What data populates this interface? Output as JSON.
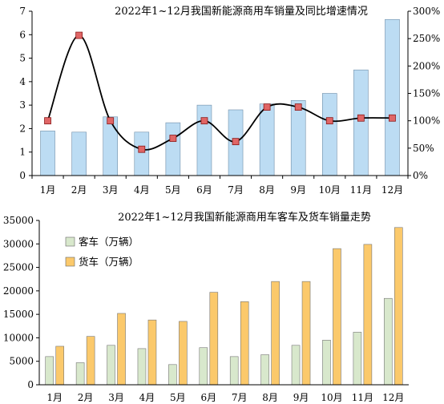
{
  "chart_data": [
    {
      "type": "bar",
      "title": "2022年1~12月我国新能源商用车销量及同比增速情况",
      "categories": [
        "1月",
        "2月",
        "3月",
        "4月",
        "5月",
        "6月",
        "7月",
        "8月",
        "9月",
        "10月",
        "11月",
        "12月"
      ],
      "series": [
        {
          "axis": "left",
          "type": "bar",
          "values": [
            1.9,
            1.85,
            2.5,
            1.85,
            2.25,
            3.0,
            2.8,
            3.05,
            3.2,
            3.5,
            4.5,
            6.65
          ],
          "color": "#bcdcf3"
        },
        {
          "axis": "right",
          "type": "line",
          "smooth": true,
          "values": [
            100,
            256,
            100,
            48,
            68,
            100,
            62,
            125,
            125,
            100,
            105,
            105
          ],
          "color": "#000000",
          "marker_color": "#e06666"
        }
      ],
      "ylim_left": [
        0,
        7
      ],
      "yticks_left": [
        "0",
        "1",
        "2",
        "3",
        "4",
        "5",
        "6",
        "7"
      ],
      "ylim_right": [
        0,
        300
      ],
      "yticks_right": [
        "0%",
        "50%",
        "100%",
        "150%",
        "200%",
        "250%",
        "300%"
      ]
    },
    {
      "type": "bar",
      "title": "2022年1~12月我国新能源商用车客车及货车销量走势",
      "categories": [
        "1月",
        "2月",
        "3月",
        "4月",
        "5月",
        "6月",
        "7月",
        "8月",
        "9月",
        "10月",
        "11月",
        "12月"
      ],
      "series": [
        {
          "name": "客车（万辆）",
          "values": [
            6000,
            4700,
            8400,
            7700,
            4300,
            7900,
            6000,
            6400,
            8400,
            9500,
            11200,
            18400
          ],
          "color": "#d8e8cc"
        },
        {
          "name": "货车（万辆）",
          "values": [
            8200,
            10300,
            15200,
            13800,
            13500,
            19700,
            17700,
            22000,
            22000,
            29000,
            29900,
            33500
          ],
          "color": "#fbc96b"
        }
      ],
      "ylim": [
        0,
        35000
      ],
      "yticks": [
        "0",
        "5000",
        "10000",
        "15000",
        "20000",
        "25000",
        "30000",
        "35000"
      ],
      "legend": "top-left"
    }
  ]
}
